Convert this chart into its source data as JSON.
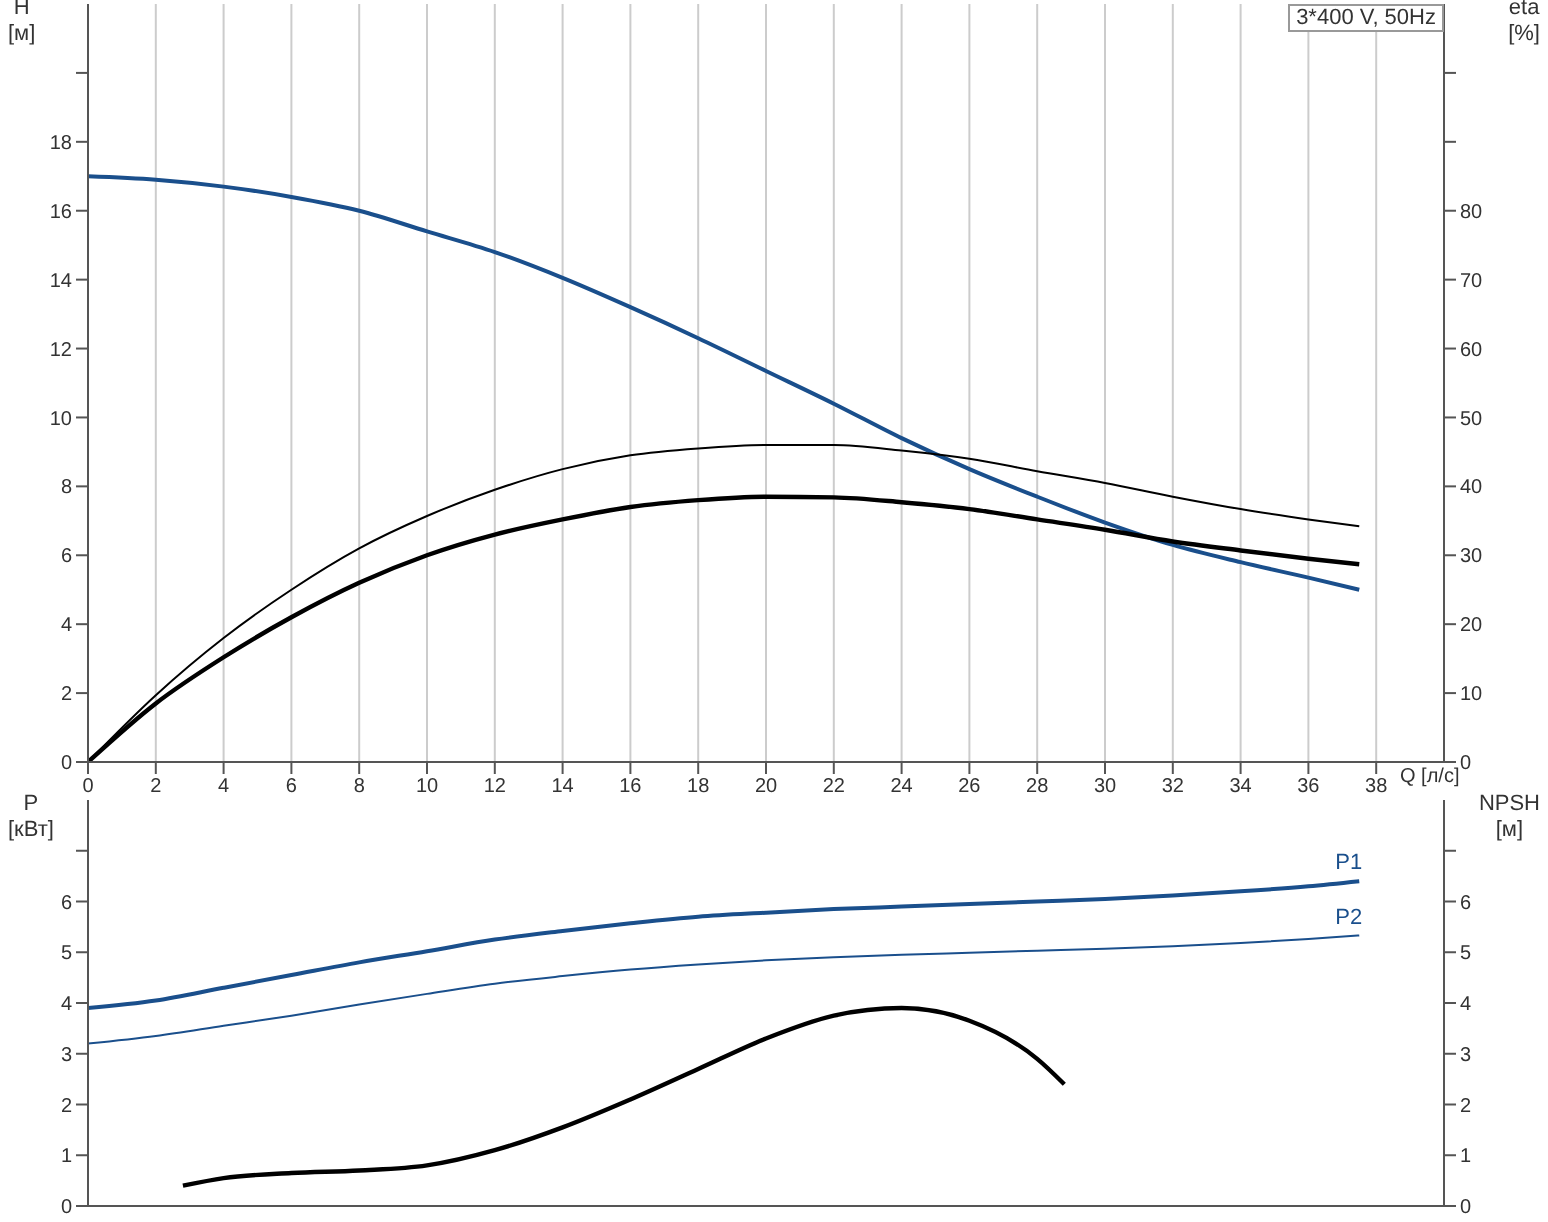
{
  "chart_data": [
    {
      "type": "line",
      "xlabel": "Q [л/с]",
      "ylabel": "H [м]",
      "y2label": "eta [%]",
      "annotations": [
        "3*400 V, 50Hz"
      ],
      "xlim": [
        0,
        40
      ],
      "xticks": [
        0,
        2,
        4,
        6,
        8,
        10,
        12,
        14,
        16,
        18,
        20,
        22,
        24,
        26,
        28,
        30,
        32,
        34,
        36,
        38
      ],
      "ylim": [
        0,
        22
      ],
      "yticks": [
        0,
        2,
        4,
        6,
        8,
        10,
        12,
        14,
        16,
        18,
        {
          "value": 20,
          "label": null
        }
      ],
      "y2lim": [
        0,
        110
      ],
      "y2ticks": [
        0,
        10,
        20,
        30,
        40,
        50,
        60,
        70,
        80,
        {
          "value": 90,
          "label": null
        },
        {
          "value": 100,
          "label": null
        }
      ],
      "grid": true,
      "marker": "none",
      "series": [
        {
          "color": "#1a4f8c",
          "x": [
            0,
            2,
            4,
            6,
            8,
            10,
            12,
            14,
            16,
            18,
            20,
            22,
            24,
            26,
            28,
            30,
            32,
            34,
            36,
            37.5
          ],
          "values": [
            17,
            16.9,
            16.7,
            16.4,
            16,
            15.4,
            14.8,
            14.05,
            13.2,
            12.3,
            11.35,
            10.4,
            9.4,
            8.5,
            7.7,
            6.95,
            6.3,
            5.8,
            5.35,
            5.0
          ]
        },
        {
          "color": "#000000",
          "axis": "y2",
          "x": [
            0,
            2,
            4,
            6,
            8,
            10,
            12,
            14,
            16,
            18,
            20,
            22,
            24,
            26,
            28,
            30,
            32,
            34,
            36,
            37.5
          ],
          "values": [
            0,
            9.7,
            18,
            25,
            31,
            35.7,
            39.5,
            42.5,
            44.5,
            45.5,
            46,
            46,
            45.2,
            44,
            42.2,
            40.5,
            38.5,
            36.7,
            35.2,
            34.2
          ]
        },
        {
          "color": "#000000",
          "axis": "y2",
          "x": [
            0,
            2,
            4,
            6,
            8,
            10,
            12,
            14,
            16,
            18,
            20,
            22,
            24,
            26,
            28,
            30,
            32,
            34,
            36,
            37.5
          ],
          "values": [
            0,
            8.5,
            15.2,
            21,
            26,
            30,
            33,
            35.2,
            37,
            38,
            38.5,
            38.4,
            37.7,
            36.7,
            35.2,
            33.7,
            32,
            30.7,
            29.5,
            28.7
          ]
        }
      ]
    },
    {
      "type": "line",
      "ylabel": "P [кВт]",
      "y2label": "NPSH [м]",
      "tick_labels": "y",
      "xlim": [
        0,
        40
      ],
      "xticks": [
        0,
        2,
        4,
        6,
        8,
        10,
        12,
        14,
        16,
        18,
        20,
        22,
        24,
        26,
        28,
        30,
        32,
        34,
        36,
        38
      ],
      "ylim": [
        0,
        8
      ],
      "yticks": [
        0,
        1,
        2,
        3,
        4,
        5,
        6,
        {
          "value": 7,
          "label": null
        }
      ],
      "y2lim": [
        0,
        8
      ],
      "y2ticks": [
        0,
        1,
        2,
        3,
        4,
        5,
        6,
        {
          "value": 7,
          "label": null
        }
      ],
      "grid": true,
      "marker": "none",
      "series": [
        {
          "name": "P1",
          "color": "#1a4f8c",
          "x": [
            0,
            2,
            4,
            6,
            8,
            10,
            12,
            14,
            16,
            18,
            20,
            22,
            24,
            26,
            28,
            30,
            32,
            34,
            36,
            37.5
          ],
          "values": [
            3.9,
            4.05,
            4.3,
            4.55,
            4.8,
            5.02,
            5.25,
            5.42,
            5.57,
            5.7,
            5.78,
            5.85,
            5.9,
            5.95,
            6.0,
            6.05,
            6.12,
            6.2,
            6.3,
            6.4
          ]
        },
        {
          "name": "P2",
          "color": "#1a4f8c",
          "x": [
            0,
            2,
            4,
            6,
            8,
            10,
            12,
            14,
            16,
            18,
            20,
            22,
            24,
            26,
            28,
            30,
            32,
            34,
            36,
            37.5
          ],
          "values": [
            3.2,
            3.35,
            3.55,
            3.75,
            3.97,
            4.18,
            4.38,
            4.53,
            4.66,
            4.76,
            4.84,
            4.9,
            4.95,
            4.99,
            5.03,
            5.07,
            5.12,
            5.18,
            5.26,
            5.33
          ]
        },
        {
          "color": "#000000",
          "axis": "y2",
          "x": [
            2.8,
            4,
            6,
            8,
            10,
            12,
            14,
            16,
            18,
            20,
            22,
            24,
            26,
            28,
            28.8
          ],
          "values": [
            0.4,
            0.55,
            0.65,
            0.7,
            0.8,
            1.1,
            1.55,
            2.1,
            2.7,
            3.3,
            3.75,
            3.9,
            3.65,
            2.9,
            2.4
          ]
        }
      ]
    }
  ]
}
